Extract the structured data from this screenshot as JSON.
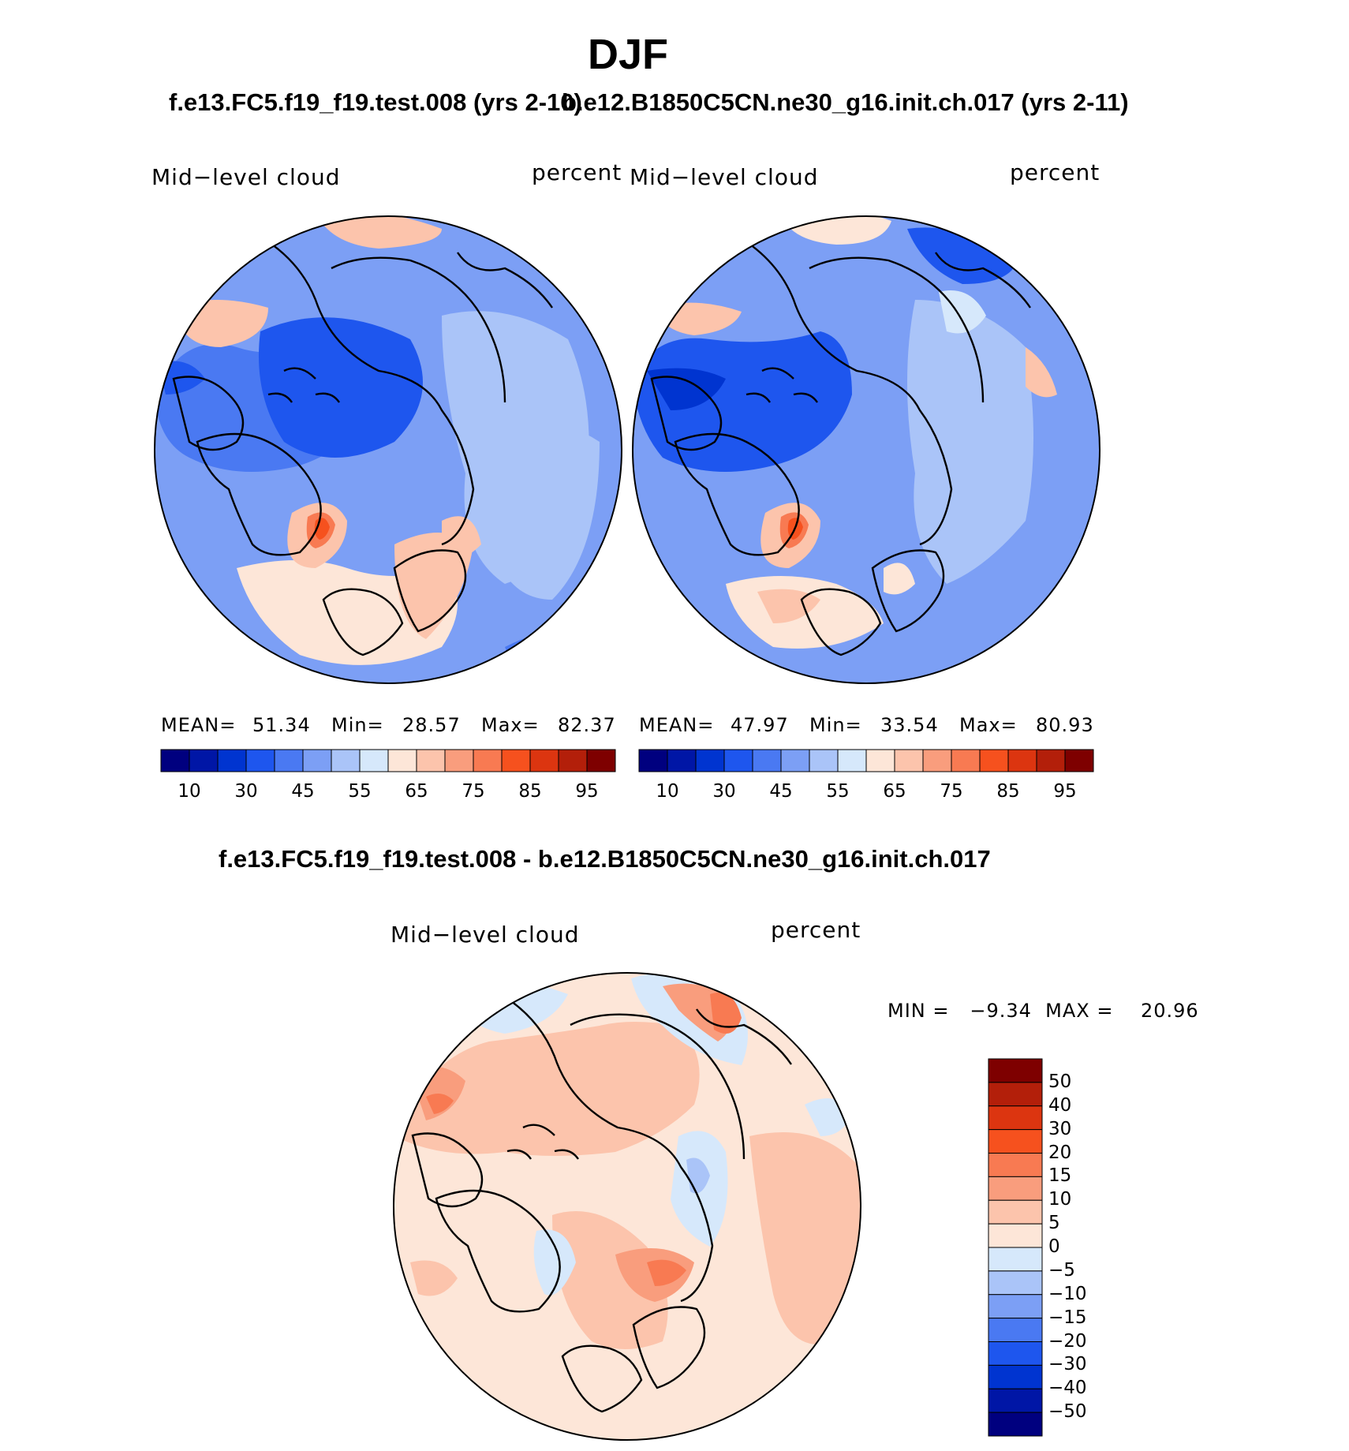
{
  "season": "DJF",
  "panels": {
    "left": {
      "subtitle": "f.e13.FC5.f19_f19.test.008 (yrs 2-10)",
      "variable": "Mid−level cloud",
      "units": "percent",
      "stats": {
        "mean_label": "MEAN=",
        "mean": "51.34",
        "min_label": "Min=",
        "min": "28.57",
        "max_label": "Max=",
        "max": "82.37"
      }
    },
    "right": {
      "subtitle": "b.e12.B1850C5CN.ne30_g16.init.ch.017 (yrs 2-11)",
      "variable": "Mid−level cloud",
      "units": "percent",
      "stats": {
        "mean_label": "MEAN=",
        "mean": "47.97",
        "min_label": "Min=",
        "min": "33.54",
        "max_label": "Max=",
        "max": "80.93"
      }
    },
    "diff": {
      "title": "f.e13.FC5.f19_f19.test.008 - b.e12.B1850C5CN.ne30_g16.init.ch.017",
      "variable": "Mid−level cloud",
      "units": "percent",
      "minmax": "MIN =   −9.34  MAX =    20.96"
    }
  },
  "colorbar_abs": {
    "colors": [
      "#00007f",
      "#0016a6",
      "#0034d0",
      "#1e56ee",
      "#4a79f2",
      "#7c9ff5",
      "#aac4f8",
      "#d6e8fb",
      "#fde6d8",
      "#fcc4ac",
      "#f99d7d",
      "#f87a52",
      "#f6511e",
      "#dc3510",
      "#b31f0a",
      "#7e0000"
    ],
    "tick_labels": [
      "10",
      "30",
      "45",
      "55",
      "65",
      "75",
      "85",
      "95"
    ]
  },
  "colorbar_diff": {
    "colors": [
      "#7e0000",
      "#b31f0a",
      "#dc3510",
      "#f6511e",
      "#f87a52",
      "#f99d7d",
      "#fcc4ac",
      "#fde6d8",
      "#d6e8fb",
      "#aac4f8",
      "#7c9ff5",
      "#4a79f2",
      "#1e56ee",
      "#0034d0",
      "#0016a6",
      "#00007f"
    ],
    "tick_labels": [
      "50",
      "40",
      "30",
      "20",
      "15",
      "10",
      "5",
      "0",
      "−5",
      "−10",
      "−15",
      "−20",
      "−30",
      "−40",
      "−50"
    ]
  }
}
